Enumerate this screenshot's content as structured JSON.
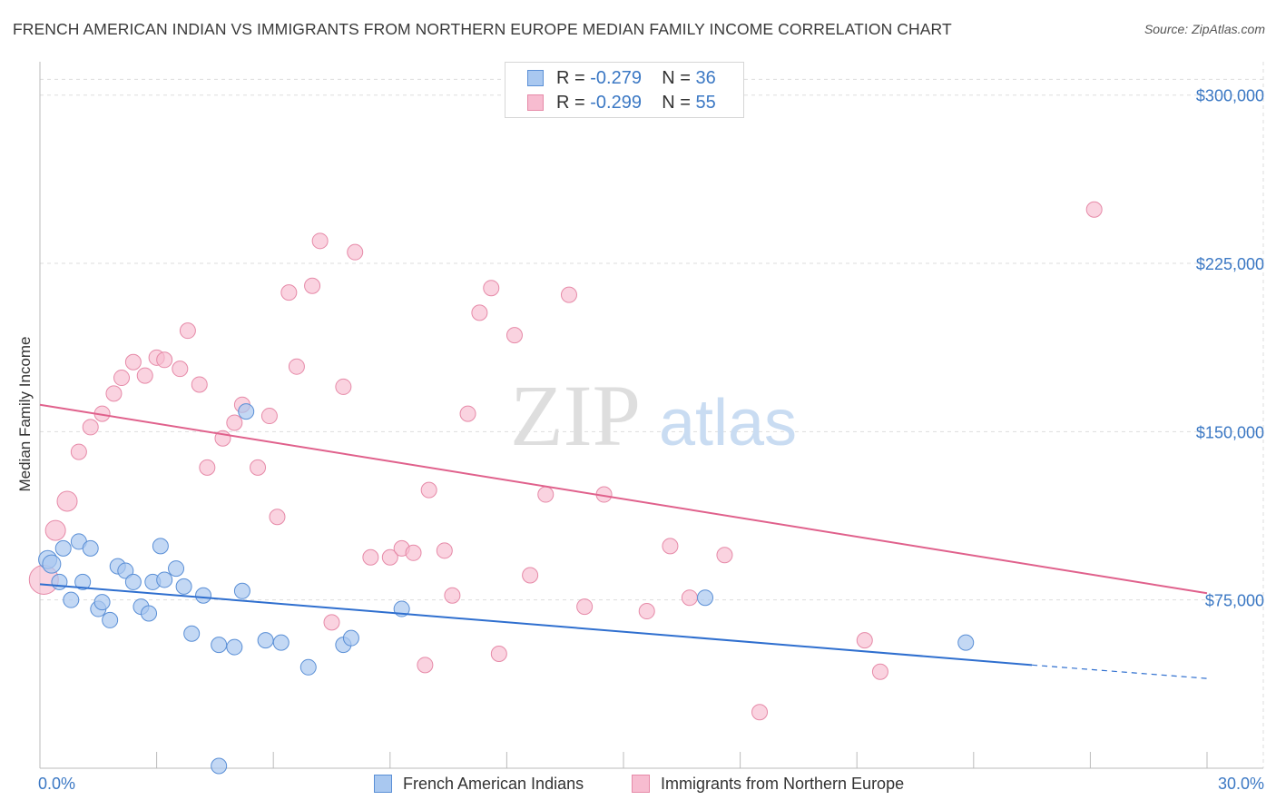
{
  "title": "FRENCH AMERICAN INDIAN VS IMMIGRANTS FROM NORTHERN EUROPE MEDIAN FAMILY INCOME CORRELATION CHART",
  "source": "Source: ZipAtlas.com",
  "watermark": {
    "zip": "ZIP",
    "atlas": "atlas"
  },
  "legend_top": {
    "rows": [
      {
        "r_label": "R =",
        "r_value": "-0.279",
        "n_label": "N =",
        "n_value": "36"
      },
      {
        "r_label": "R =",
        "r_value": "-0.299",
        "n_label": "N =",
        "n_value": "55"
      }
    ]
  },
  "legend_bottom": {
    "items": [
      "French American Indians",
      "Immigrants from Northern Europe"
    ]
  },
  "colors": {
    "blue_fill": "#a9c8f0",
    "blue_stroke": "#5a8fd6",
    "blue_line": "#2f6fcf",
    "pink_fill": "#f7bcd0",
    "pink_stroke": "#e68aa8",
    "pink_line": "#e0618c",
    "tick_label": "#3b78c4",
    "grid": "#dddddd"
  },
  "chart_data": {
    "type": "scatter",
    "title": "FRENCH AMERICAN INDIAN VS IMMIGRANTS FROM NORTHERN EUROPE MEDIAN FAMILY INCOME CORRELATION CHART",
    "xlabel": "",
    "ylabel": "Median Family Income",
    "xlim": [
      0,
      30
    ],
    "ylim": [
      0,
      310000
    ],
    "x_tick_labels": [
      "0.0%",
      "30.0%"
    ],
    "y_ticks": [
      75000,
      150000,
      225000,
      300000
    ],
    "y_tick_labels": [
      "$75,000",
      "$150,000",
      "$225,000",
      "$300,000"
    ],
    "grid": true,
    "series": [
      {
        "name": "French American Indians",
        "r": -0.279,
        "n": 36,
        "trend": {
          "x0": 0,
          "y0": 82000,
          "x1": 25.5,
          "y1": 46000,
          "dash_to_x": 30,
          "dash_to_y": 40000
        },
        "points": [
          [
            0.2,
            93000
          ],
          [
            0.3,
            91000
          ],
          [
            0.5,
            83000
          ],
          [
            0.6,
            98000
          ],
          [
            0.8,
            75000
          ],
          [
            1.0,
            101000
          ],
          [
            1.1,
            83000
          ],
          [
            1.3,
            98000
          ],
          [
            1.5,
            71000
          ],
          [
            1.6,
            74000
          ],
          [
            1.8,
            66000
          ],
          [
            2.0,
            90000
          ],
          [
            2.2,
            88000
          ],
          [
            2.4,
            83000
          ],
          [
            2.6,
            72000
          ],
          [
            2.8,
            69000
          ],
          [
            2.9,
            83000
          ],
          [
            3.1,
            99000
          ],
          [
            3.2,
            84000
          ],
          [
            3.5,
            89000
          ],
          [
            3.7,
            81000
          ],
          [
            3.9,
            60000
          ],
          [
            4.2,
            77000
          ],
          [
            4.6,
            55000
          ],
          [
            4.6,
            1000
          ],
          [
            5.0,
            54000
          ],
          [
            5.2,
            79000
          ],
          [
            5.3,
            159000
          ],
          [
            5.8,
            57000
          ],
          [
            6.2,
            56000
          ],
          [
            6.9,
            45000
          ],
          [
            7.8,
            55000
          ],
          [
            8.0,
            58000
          ],
          [
            9.3,
            71000
          ],
          [
            17.1,
            76000
          ],
          [
            23.8,
            56000
          ]
        ]
      },
      {
        "name": "Immigrants from Northern Europe",
        "r": -0.299,
        "n": 55,
        "trend": {
          "x0": 0,
          "y0": 162000,
          "x1": 30,
          "y1": 78000
        },
        "points": [
          [
            0.1,
            84000
          ],
          [
            0.4,
            106000
          ],
          [
            0.7,
            119000
          ],
          [
            1.0,
            141000
          ],
          [
            1.3,
            152000
          ],
          [
            1.6,
            158000
          ],
          [
            1.9,
            167000
          ],
          [
            2.1,
            174000
          ],
          [
            2.4,
            181000
          ],
          [
            2.7,
            175000
          ],
          [
            3.0,
            183000
          ],
          [
            3.2,
            182000
          ],
          [
            3.6,
            178000
          ],
          [
            3.8,
            195000
          ],
          [
            4.1,
            171000
          ],
          [
            4.3,
            134000
          ],
          [
            4.7,
            147000
          ],
          [
            5.0,
            154000
          ],
          [
            5.2,
            162000
          ],
          [
            5.6,
            134000
          ],
          [
            5.9,
            157000
          ],
          [
            6.1,
            112000
          ],
          [
            6.4,
            212000
          ],
          [
            6.6,
            179000
          ],
          [
            7.0,
            215000
          ],
          [
            7.2,
            235000
          ],
          [
            7.5,
            65000
          ],
          [
            7.8,
            170000
          ],
          [
            8.1,
            230000
          ],
          [
            8.5,
            94000
          ],
          [
            9.0,
            94000
          ],
          [
            9.3,
            98000
          ],
          [
            9.6,
            96000
          ],
          [
            9.9,
            46000
          ],
          [
            10.0,
            124000
          ],
          [
            10.4,
            97000
          ],
          [
            10.6,
            77000
          ],
          [
            11.0,
            158000
          ],
          [
            11.3,
            203000
          ],
          [
            11.6,
            214000
          ],
          [
            11.8,
            51000
          ],
          [
            12.2,
            193000
          ],
          [
            12.6,
            86000
          ],
          [
            13.0,
            122000
          ],
          [
            13.6,
            211000
          ],
          [
            14.0,
            72000
          ],
          [
            14.5,
            122000
          ],
          [
            15.6,
            70000
          ],
          [
            16.2,
            99000
          ],
          [
            16.7,
            76000
          ],
          [
            17.6,
            95000
          ],
          [
            18.5,
            25000
          ],
          [
            21.2,
            57000
          ],
          [
            21.6,
            43000
          ],
          [
            27.1,
            249000
          ]
        ]
      }
    ]
  }
}
